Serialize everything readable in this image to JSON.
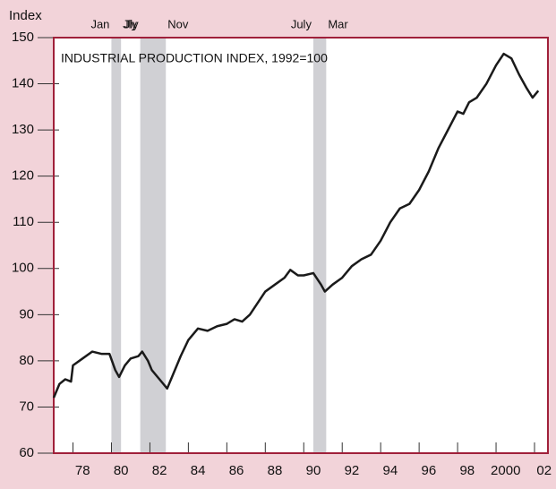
{
  "chart_data": {
    "type": "line",
    "title": "INDUSTRIAL PRODUCTION INDEX, 1992=100",
    "y_label": "Index",
    "x": [
      1977.0,
      1977.3,
      1977.6,
      1977.9,
      1978.0,
      1978.5,
      1979.0,
      1979.5,
      1979.9,
      1980.2,
      1980.4,
      1980.7,
      1981.0,
      1981.4,
      1981.6,
      1981.9,
      1982.1,
      1982.5,
      1982.9,
      1983.2,
      1983.6,
      1984.0,
      1984.5,
      1985.0,
      1985.5,
      1986.0,
      1986.4,
      1986.8,
      1987.2,
      1987.6,
      1988.0,
      1988.5,
      1989.0,
      1989.3,
      1989.7,
      1990.0,
      1990.5,
      1990.9,
      1991.1,
      1991.5,
      1992.0,
      1992.5,
      1993.0,
      1993.5,
      1994.0,
      1994.5,
      1995.0,
      1995.5,
      1996.0,
      1996.5,
      1997.0,
      1997.5,
      1998.0,
      1998.3,
      1998.6,
      1999.0,
      1999.5,
      2000.0,
      2000.4,
      2000.8,
      2001.2,
      2001.6,
      2001.9,
      2002.2
    ],
    "series": [
      {
        "name": "Industrial production index",
        "color": "#1a1a1a",
        "values": [
          72,
          75,
          76,
          75.5,
          79,
          80.5,
          82,
          81.5,
          81.5,
          78,
          76.5,
          79,
          80.5,
          81,
          82,
          80,
          78,
          76,
          74,
          77,
          81,
          84.5,
          87,
          86.5,
          87.5,
          88,
          89,
          88.5,
          90,
          92.5,
          95,
          96.5,
          98,
          99.7,
          98.5,
          98.5,
          99,
          96.5,
          95,
          96.5,
          98,
          100.5,
          102,
          103,
          106,
          110,
          113,
          114,
          117,
          121,
          126,
          130,
          134,
          133.5,
          136,
          137,
          140,
          144,
          146.5,
          145.5,
          142,
          139,
          137,
          138.5
        ]
      }
    ],
    "recessions": [
      {
        "start": 1980.0,
        "end": 1980.5,
        "start_label": "Jan",
        "end_label": "Jly"
      },
      {
        "start": 1981.5,
        "end": 1982.83,
        "start_label": "Jly",
        "end_label": "Nov"
      },
      {
        "start": 1990.5,
        "end": 1991.17,
        "start_label": "July",
        "end_label": "Mar"
      }
    ],
    "xlim": [
      1977.0,
      2002.7
    ],
    "xticks": [
      {
        "value": 1978.5,
        "label": "78"
      },
      {
        "value": 1980.5,
        "label": "80"
      },
      {
        "value": 1982.5,
        "label": "82"
      },
      {
        "value": 1984.5,
        "label": "84"
      },
      {
        "value": 1986.5,
        "label": "86"
      },
      {
        "value": 1988.5,
        "label": "88"
      },
      {
        "value": 1990.5,
        "label": "90"
      },
      {
        "value": 1992.5,
        "label": "92"
      },
      {
        "value": 1994.5,
        "label": "94"
      },
      {
        "value": 1996.5,
        "label": "96"
      },
      {
        "value": 1998.5,
        "label": "98"
      },
      {
        "value": 2000.5,
        "label": "2000"
      },
      {
        "value": 2002.5,
        "label": "02"
      }
    ],
    "ylim": [
      60,
      150
    ],
    "yticks": [
      60,
      70,
      80,
      90,
      100,
      110,
      120,
      130,
      140,
      150
    ]
  }
}
